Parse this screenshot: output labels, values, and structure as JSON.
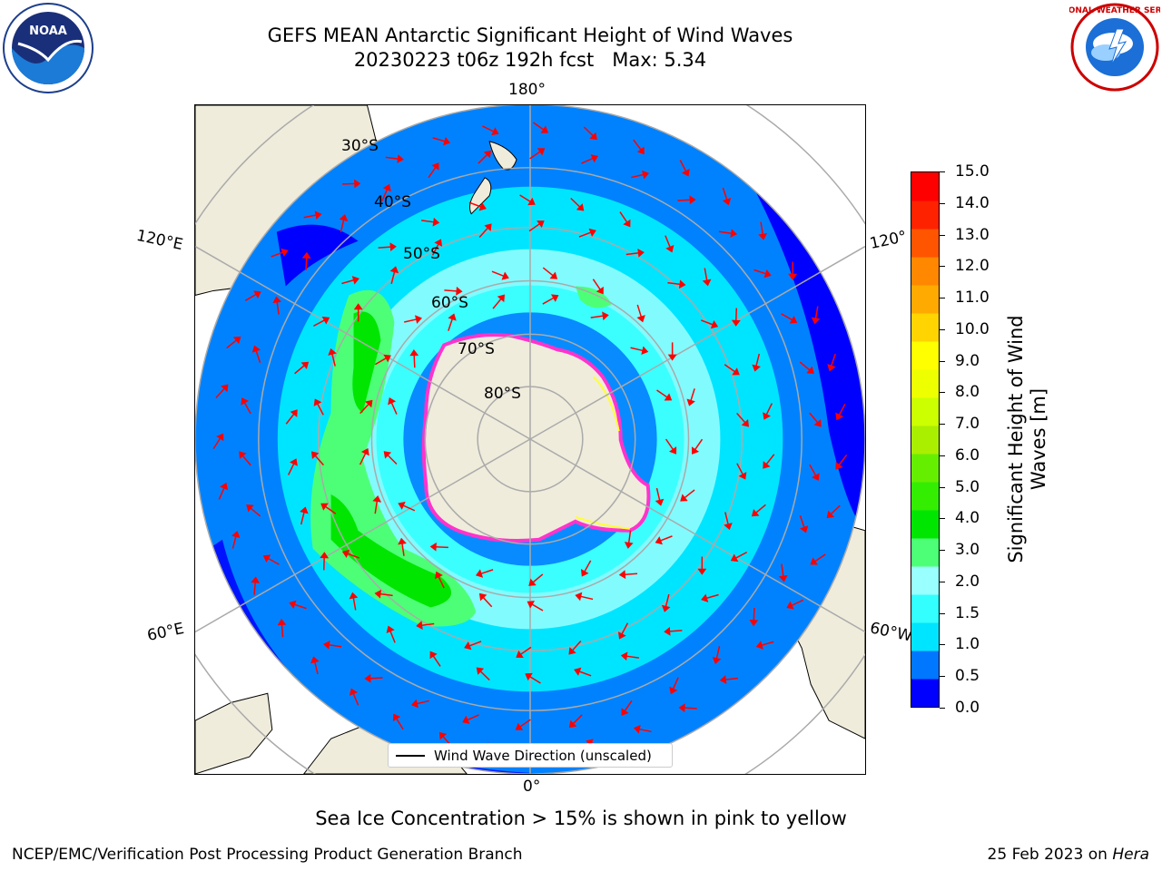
{
  "header": {
    "title_line1": "GEFS MEAN Antarctic Significant Height of Wind Waves",
    "title_line2": "20230223 t06z 192h fcst   Max: 5.34"
  },
  "logos": {
    "left": "noaa-logo",
    "left_text": "NOAA",
    "right": "national-weather-service-logo",
    "right_text": "NATIONAL WEATHER SERVICE"
  },
  "map": {
    "projection": "south-polar-stereographic",
    "lon_labels": {
      "top": "180°",
      "bottom": "0°",
      "upper_left": "120°E",
      "upper_right": "120°",
      "lower_left": "60°E",
      "lower_right": "60°W"
    },
    "lat_labels": [
      "30°S",
      "40°S",
      "50°S",
      "60°S",
      "70°S",
      "80°S"
    ],
    "legend_label": "Wind Wave Direction (unscaled)",
    "colors": {
      "land": "#efecdc",
      "ice_pink": "#ff33cc",
      "ice_yellow": "#ffff33",
      "arrow": "#ff0000",
      "grid": "#aaaaaa"
    }
  },
  "colorbar": {
    "label": "Significant Height of Wind Waves [m]",
    "ticks": [
      "15.0",
      "14.0",
      "13.0",
      "12.0",
      "11.0",
      "10.0",
      "9.0",
      "8.0",
      "7.0",
      "6.0",
      "5.0",
      "4.0",
      "3.0",
      "2.0",
      "1.5",
      "1.0",
      "0.5",
      "0.0"
    ],
    "colors": [
      "#0000ff",
      "#0077ff",
      "#00e5ff",
      "#33ffff",
      "#99ffff",
      "#4dff77",
      "#00e600",
      "#33ee00",
      "#66ee00",
      "#aaee00",
      "#ccff00",
      "#eeff00",
      "#ffff00",
      "#ffd400",
      "#ffaa00",
      "#ff8800",
      "#ff5500",
      "#ff2200",
      "#ff0000"
    ]
  },
  "footer": {
    "sea_ice_note": "Sea Ice Concentration > 15% is shown in pink to yellow",
    "credit": "NCEP/EMC/Verification Post Processing Product Generation Branch",
    "date": "25 Feb 2023 on ",
    "machine": "Hera"
  }
}
